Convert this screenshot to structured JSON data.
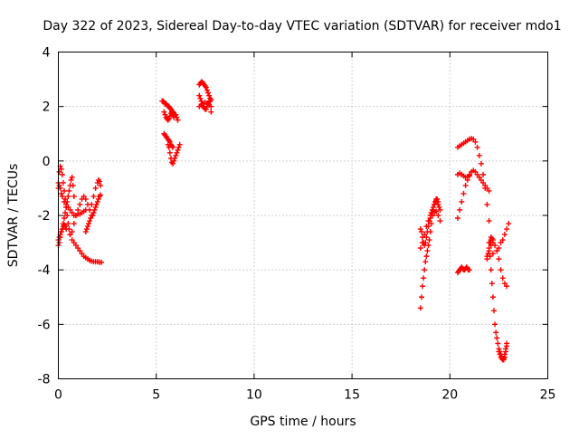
{
  "chart_data": {
    "type": "scatter",
    "title": "Day 322 of 2023, Sidereal Day-to-day VTEC variation (SDTVAR) for receiver mdo1",
    "xlabel": "GPS time / hours",
    "ylabel": "SDTVAR / TECUs",
    "xlim": [
      0,
      25
    ],
    "ylim": [
      -8,
      4
    ],
    "x_ticks": [
      0,
      5,
      10,
      15,
      20,
      25
    ],
    "y_ticks": [
      -8,
      -6,
      -4,
      -2,
      0,
      2,
      4
    ],
    "x_tick_labels": [
      "0",
      "5",
      "10",
      "15",
      "20",
      "25"
    ],
    "y_tick_labels": [
      "-8",
      "-6",
      "-4",
      "-2",
      "0",
      "2",
      "4"
    ],
    "grid": true,
    "marker": "+",
    "color": "#ff0000",
    "series": [
      {
        "x": [
          0.0,
          0.05,
          0.1,
          0.15,
          0.2,
          0.25,
          0.3,
          0.35,
          0.4,
          0.45,
          0.5,
          0.55,
          0.6,
          0.7,
          0.8,
          0.9,
          1.0,
          1.1,
          1.2,
          1.3,
          1.4,
          1.5,
          1.6,
          1.7,
          1.8,
          1.9,
          2.0,
          2.1,
          2.2
        ],
        "y": [
          -0.8,
          -0.4,
          -0.2,
          -0.3,
          -0.5,
          -0.8,
          -1.1,
          -1.4,
          -1.7,
          -2.0,
          -2.3,
          -2.5,
          -2.7,
          -2.9,
          -3.0,
          -3.1,
          -3.2,
          -3.3,
          -3.4,
          -3.5,
          -3.55,
          -3.6,
          -3.65,
          -3.68,
          -3.7,
          -3.7,
          -3.7,
          -3.72,
          -3.72
        ]
      },
      {
        "x": [
          0.0,
          0.05,
          0.1,
          0.15,
          0.2,
          0.25,
          0.3,
          0.35,
          0.4,
          0.45,
          0.5,
          0.55,
          0.6,
          0.65,
          0.7,
          0.75,
          0.8
        ],
        "y": [
          -3.1,
          -3.0,
          -2.8,
          -2.6,
          -2.5,
          -2.3,
          -2.1,
          -1.9,
          -1.7,
          -1.5,
          -1.3,
          -1.1,
          -0.9,
          -0.7,
          -0.6,
          -0.9,
          -1.3
        ]
      },
      {
        "x": [
          0.0,
          0.05,
          0.1,
          0.15,
          0.2,
          0.3,
          0.4,
          0.5,
          0.6,
          0.7,
          0.8,
          0.9,
          1.0,
          1.1,
          1.2,
          1.3,
          1.4
        ],
        "y": [
          -1.0,
          -0.9,
          -1.0,
          -1.2,
          -1.3,
          -1.5,
          -1.6,
          -1.7,
          -1.8,
          -1.9,
          -2.0,
          -2.0,
          -1.95,
          -1.95,
          -1.9,
          -1.85,
          -1.8
        ]
      },
      {
        "x": [
          0.0,
          0.05,
          0.1,
          0.15,
          0.2,
          0.25,
          0.3,
          0.35,
          0.4
        ],
        "y": [
          -2.9,
          -2.8,
          -2.7,
          -2.6,
          -2.5,
          -2.4,
          -2.35,
          -2.4,
          -2.5
        ]
      },
      {
        "x": [
          0.6,
          0.7,
          0.8,
          0.9,
          1.0,
          1.1,
          1.2,
          1.3,
          1.4,
          1.5,
          1.6,
          1.7,
          1.8,
          1.9,
          2.0,
          2.05,
          2.1,
          2.15
        ],
        "y": [
          -2.7,
          -2.6,
          -2.3,
          -2.0,
          -1.8,
          -1.6,
          -1.4,
          -1.3,
          -1.4,
          -1.6,
          -1.8,
          -1.6,
          -1.3,
          -1.0,
          -0.8,
          -0.7,
          -0.75,
          -0.9
        ]
      },
      {
        "x": [
          1.4,
          1.45,
          1.5,
          1.55,
          1.6,
          1.65,
          1.7,
          1.75,
          1.8,
          1.85,
          1.9,
          1.95,
          2.0,
          2.05,
          2.1,
          2.15
        ],
        "y": [
          -2.6,
          -2.5,
          -2.4,
          -2.3,
          -2.2,
          -2.1,
          -2.0,
          -2.0,
          -1.9,
          -1.8,
          -1.7,
          -1.6,
          -1.5,
          -1.4,
          -1.3,
          -1.25
        ]
      },
      {
        "x": [
          5.3,
          5.35,
          5.4,
          5.45,
          5.5,
          5.55,
          5.6,
          5.65,
          5.7,
          5.75,
          5.8,
          5.85,
          5.9,
          5.95,
          6.0,
          6.05,
          6.1
        ],
        "y": [
          2.2,
          2.2,
          2.15,
          2.1,
          2.1,
          2.05,
          2.0,
          2.0,
          1.95,
          1.9,
          1.85,
          1.8,
          1.75,
          1.7,
          1.7,
          1.6,
          1.5
        ]
      },
      {
        "x": [
          5.4,
          5.45,
          5.5,
          5.55,
          5.6,
          5.65,
          5.7,
          5.75,
          5.8,
          5.85,
          5.9
        ],
        "y": [
          1.8,
          1.7,
          1.6,
          1.55,
          1.5,
          1.55,
          1.65,
          1.75,
          1.8,
          1.7,
          1.6
        ]
      },
      {
        "x": [
          5.4,
          5.45,
          5.5,
          5.55,
          5.6,
          5.65,
          5.7,
          5.75,
          5.8,
          5.85
        ],
        "y": [
          1.0,
          0.95,
          0.9,
          0.85,
          0.8,
          0.75,
          0.7,
          0.6,
          0.55,
          0.5
        ]
      },
      {
        "x": [
          5.6,
          5.65,
          5.7,
          5.75,
          5.8,
          5.85,
          5.9,
          5.95,
          6.0,
          6.05,
          6.1,
          6.15,
          6.2
        ],
        "y": [
          0.6,
          0.5,
          0.3,
          0.1,
          -0.05,
          -0.1,
          0.0,
          0.1,
          0.2,
          0.3,
          0.4,
          0.5,
          0.6
        ]
      },
      {
        "x": [
          7.2,
          7.25,
          7.3,
          7.35,
          7.4,
          7.45,
          7.5,
          7.55,
          7.6,
          7.65,
          7.7,
          7.75,
          7.8
        ],
        "y": [
          2.8,
          2.85,
          2.9,
          2.9,
          2.85,
          2.8,
          2.75,
          2.7,
          2.6,
          2.5,
          2.4,
          2.2,
          2.0
        ]
      },
      {
        "x": [
          7.2,
          7.25,
          7.3,
          7.35,
          7.4,
          7.45,
          7.5,
          7.55,
          7.6,
          7.65,
          7.7,
          7.75,
          7.8
        ],
        "y": [
          2.4,
          2.3,
          2.2,
          2.1,
          2.0,
          1.95,
          1.9,
          1.9,
          2.0,
          2.1,
          2.2,
          2.3,
          2.25
        ]
      },
      {
        "x": [
          7.2,
          7.3,
          7.4,
          7.5,
          7.6,
          7.7,
          7.8
        ],
        "y": [
          2.0,
          2.05,
          2.1,
          2.15,
          2.1,
          2.05,
          1.8
        ]
      },
      {
        "x": [
          18.5,
          18.55,
          18.6,
          18.65,
          18.7,
          18.75,
          18.8,
          18.85,
          18.9,
          18.95,
          19.0,
          19.05,
          19.1,
          19.15,
          19.2,
          19.25,
          19.3,
          19.35,
          19.4
        ],
        "y": [
          -5.4,
          -5.0,
          -4.6,
          -4.3,
          -4.0,
          -3.7,
          -3.5,
          -3.3,
          -3.1,
          -2.9,
          -2.6,
          -2.3,
          -2.0,
          -1.8,
          -1.6,
          -1.5,
          -1.4,
          -1.4,
          -1.5
        ]
      },
      {
        "x": [
          18.5,
          18.55,
          18.6,
          18.65,
          18.7,
          18.75,
          18.8,
          18.85,
          18.9,
          18.95,
          19.0,
          19.05,
          19.1,
          19.15,
          19.2,
          19.25,
          19.3,
          19.35,
          19.4,
          19.45,
          19.5
        ],
        "y": [
          -2.5,
          -2.6,
          -2.8,
          -3.0,
          -3.1,
          -3.0,
          -2.8,
          -2.6,
          -2.4,
          -2.2,
          -2.0,
          -1.9,
          -1.8,
          -1.7,
          -1.6,
          -1.5,
          -1.45,
          -1.5,
          -1.6,
          -1.7,
          -1.8
        ]
      },
      {
        "x": [
          18.5,
          18.6,
          18.7,
          18.8,
          18.9,
          19.0,
          19.1,
          19.2,
          19.3,
          19.4,
          19.5
        ],
        "y": [
          -3.2,
          -3.0,
          -2.7,
          -2.4,
          -2.2,
          -2.1,
          -2.0,
          -1.9,
          -1.85,
          -2.0,
          -2.2
        ]
      },
      {
        "x": [
          20.4,
          20.45,
          20.5,
          20.55,
          20.6,
          20.65,
          20.7,
          20.75,
          20.8,
          20.85,
          20.9,
          20.95,
          21.0
        ],
        "y": [
          -4.1,
          -4.05,
          -4.0,
          -3.95,
          -3.9,
          -3.95,
          -4.0,
          -4.0,
          -3.95,
          -3.9,
          -3.95,
          -4.0,
          -4.0
        ]
      },
      {
        "x": [
          20.4,
          20.5,
          20.6,
          20.7,
          20.8,
          20.9,
          21.0,
          21.1,
          21.2,
          21.3,
          21.4,
          21.5,
          21.6,
          21.7,
          21.8,
          21.9,
          22.0
        ],
        "y": [
          -2.1,
          -1.8,
          -1.5,
          -1.2,
          -0.9,
          -0.7,
          -0.5,
          -0.4,
          -0.35,
          -0.4,
          -0.5,
          -0.6,
          -0.7,
          -0.8,
          -0.9,
          -1.0,
          -1.1
        ]
      },
      {
        "x": [
          20.4,
          20.5,
          20.6,
          20.7,
          20.8,
          20.9,
          21.0,
          21.1,
          21.2,
          21.3,
          21.4,
          21.5,
          21.6,
          21.7,
          21.8,
          21.9,
          22.0,
          22.1,
          22.2
        ],
        "y": [
          0.5,
          0.55,
          0.6,
          0.65,
          0.7,
          0.75,
          0.8,
          0.82,
          0.8,
          0.7,
          0.5,
          0.2,
          -0.1,
          -0.5,
          -1.0,
          -1.6,
          -2.2,
          -2.8,
          -3.4
        ]
      },
      {
        "x": [
          20.4,
          20.5,
          20.6,
          20.7,
          20.8,
          20.9,
          21.0
        ],
        "y": [
          -0.5,
          -0.45,
          -0.5,
          -0.55,
          -0.6,
          -0.6,
          -0.55
        ]
      },
      {
        "x": [
          21.9,
          22.0,
          22.1,
          22.2,
          22.3,
          22.4,
          22.5,
          22.6,
          22.7,
          22.8,
          22.9
        ],
        "y": [
          -3.5,
          -3.3,
          -3.1,
          -3.0,
          -3.1,
          -3.3,
          -3.6,
          -4.0,
          -4.3,
          -4.5,
          -4.6
        ]
      },
      {
        "x": [
          21.9,
          21.95,
          22.0,
          22.05,
          22.1,
          22.15,
          22.2
        ],
        "y": [
          -3.6,
          -3.4,
          -3.2,
          -3.0,
          -2.9,
          -2.85,
          -2.9
        ]
      },
      {
        "x": [
          22.0,
          22.05,
          22.1,
          22.15,
          22.2,
          22.25,
          22.3,
          22.35,
          22.4,
          22.45,
          22.5,
          22.55,
          22.6,
          22.65,
          22.7,
          22.75,
          22.8,
          22.85,
          22.9
        ],
        "y": [
          -3.0,
          -3.5,
          -4.0,
          -4.5,
          -5.0,
          -5.5,
          -6.0,
          -6.3,
          -6.5,
          -6.7,
          -6.9,
          -7.0,
          -7.1,
          -7.2,
          -7.25,
          -7.3,
          -7.2,
          -7.0,
          -6.8
        ]
      },
      {
        "x": [
          22.4,
          22.5,
          22.6,
          22.7,
          22.8,
          22.9,
          23.0
        ],
        "y": [
          -3.3,
          -3.2,
          -3.0,
          -2.9,
          -2.7,
          -2.5,
          -2.3
        ]
      },
      {
        "x": [
          22.5,
          22.55,
          22.6,
          22.65,
          22.7,
          22.75,
          22.8,
          22.85,
          22.9
        ],
        "y": [
          -7.0,
          -7.1,
          -7.2,
          -7.25,
          -7.3,
          -7.25,
          -7.1,
          -6.9,
          -6.7
        ]
      }
    ]
  }
}
